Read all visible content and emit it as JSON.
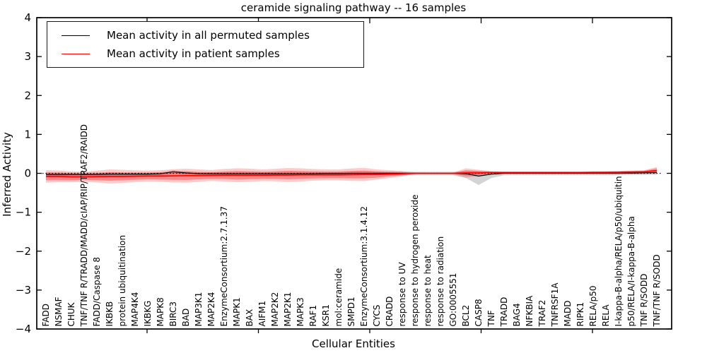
{
  "figure": {
    "title": "ceramide signaling pathway -- 16 samples",
    "xlabel": "Cellular Entities",
    "ylabel": "Inferred Activity"
  },
  "legend": {
    "items": [
      {
        "label": "Mean activity in all permuted samples",
        "color": "#000000"
      },
      {
        "label": "Mean activity in patient samples",
        "color": "#ff0000"
      }
    ]
  },
  "chart_data": {
    "type": "line",
    "title": "ceramide signaling pathway -- 16 samples",
    "xlabel": "Cellular Entities",
    "ylabel": "Inferred Activity",
    "ylim": [
      -4,
      4
    ],
    "yticks": [
      4,
      3,
      2,
      1,
      0,
      -1,
      -2,
      -3,
      -4
    ],
    "grid": false,
    "zero_line": {
      "style": "dotted",
      "color": "#000000",
      "y": 0
    },
    "legend_position": "upper-left",
    "categories": [
      "FADD",
      "NSMAF",
      "CHUK",
      "TNF/TNF R/TRADD/MADD/cIAP/RIP/TRAF2/RAIDD",
      "FADD/Caspase 8",
      "IKBKB",
      "protein ubiquitination",
      "MAP4K4",
      "IKBKG",
      "MAPK8",
      "BIRC3",
      "BAD",
      "MAP3K1",
      "MAP2K4",
      "EnzymeConsortium:2.7.1.37",
      "MAPK1",
      "BAX",
      "AIFM1",
      "MAP2K2",
      "MAP2K1",
      "MAPK3",
      "RAF1",
      "KSR1",
      "mol:ceramide",
      "SMPD1",
      "EnzymeConsortium:3.1.4.12",
      "CYCS",
      "CRADD",
      "response to UV",
      "response to hydrogen peroxide",
      "response to heat",
      "response to radiation",
      "GO:0005551",
      "BCL2",
      "CASP8",
      "TNF",
      "TRADD",
      "BAG4",
      "NFKBIA",
      "TRAF2",
      "TNFRSF1A",
      "MADD",
      "RIPK1",
      "RELA/p50",
      "RELA",
      "I-kappa-B-alpha/RELA/p50/ubiquitin",
      "p50/RELA/I-kappa-B-alpha",
      "TNF R/SODD",
      "TNF/TNF R/SODD"
    ],
    "series": [
      {
        "name": "Mean activity in all permuted samples",
        "color": "#000000",
        "values": [
          -0.03,
          -0.03,
          -0.03,
          -0.03,
          -0.03,
          -0.02,
          -0.02,
          -0.02,
          -0.02,
          -0.01,
          0.04,
          0.01,
          -0.01,
          -0.01,
          -0.01,
          -0.01,
          -0.01,
          -0.01,
          -0.01,
          -0.01,
          -0.01,
          -0.01,
          -0.005,
          -0.005,
          0,
          0,
          0,
          0,
          0,
          0,
          0,
          0,
          0,
          -0.01,
          -0.07,
          -0.02,
          0,
          0,
          0,
          0,
          0,
          0,
          0,
          0,
          0,
          0,
          0.005,
          0.01,
          0.02
        ]
      },
      {
        "name": "Mean activity in patient samples",
        "color": "#ff0000",
        "values": [
          -0.08,
          -0.08,
          -0.09,
          -0.09,
          -0.085,
          -0.08,
          -0.08,
          -0.075,
          -0.07,
          -0.07,
          -0.065,
          -0.06,
          -0.06,
          -0.055,
          -0.05,
          -0.05,
          -0.05,
          -0.05,
          -0.045,
          -0.045,
          -0.04,
          -0.04,
          -0.04,
          -0.04,
          -0.035,
          -0.03,
          -0.03,
          -0.02,
          -0.01,
          0,
          0,
          0,
          0,
          0.01,
          0.01,
          0.02,
          0.02,
          0.02,
          0.02,
          0.02,
          0.02,
          0.02,
          0.02,
          0.025,
          0.025,
          0.03,
          0.035,
          0.04,
          0.07
        ]
      }
    ],
    "bands": [
      {
        "name": "permuted-sample-range",
        "color": "#b0b0b0",
        "opacity": 0.55,
        "upper": [
          0.02,
          0.02,
          0.02,
          0.02,
          0.02,
          0.02,
          0.02,
          0.02,
          0.02,
          0.03,
          0.08,
          0.05,
          0.03,
          0.03,
          0.03,
          0.03,
          0.03,
          0.03,
          0.03,
          0.03,
          0.03,
          0.03,
          0.03,
          0.03,
          0.04,
          0.04,
          0.04,
          0.04,
          0.04,
          0.04,
          0.04,
          0.04,
          0.04,
          0.05,
          0.06,
          0.05,
          0.04,
          0.04,
          0.04,
          0.04,
          0.04,
          0.04,
          0.04,
          0.04,
          0.04,
          0.04,
          0.05,
          0.05,
          0.06
        ],
        "lower": [
          -0.07,
          -0.07,
          -0.07,
          -0.07,
          -0.07,
          -0.07,
          -0.07,
          -0.07,
          -0.07,
          -0.06,
          -0.01,
          -0.04,
          -0.06,
          -0.06,
          -0.06,
          -0.06,
          -0.06,
          -0.06,
          -0.06,
          -0.06,
          -0.06,
          -0.06,
          -0.06,
          -0.06,
          -0.05,
          -0.05,
          -0.05,
          -0.05,
          -0.05,
          -0.05,
          -0.05,
          -0.05,
          -0.05,
          -0.12,
          -0.3,
          -0.12,
          -0.05,
          -0.05,
          -0.05,
          -0.05,
          -0.05,
          -0.05,
          -0.05,
          -0.05,
          -0.05,
          -0.05,
          -0.04,
          -0.04,
          -0.03
        ]
      },
      {
        "name": "patient-range-outer",
        "color": "#ff3b3b",
        "opacity": 0.27,
        "center_series": 1,
        "width": [
          0.16,
          0.15,
          0.14,
          0.13,
          0.15,
          0.18,
          0.17,
          0.15,
          0.14,
          0.15,
          0.17,
          0.18,
          0.16,
          0.14,
          0.16,
          0.18,
          0.17,
          0.15,
          0.16,
          0.18,
          0.17,
          0.15,
          0.14,
          0.14,
          0.16,
          0.17,
          0.13,
          0.1,
          0.07,
          0.02,
          0.01,
          0.01,
          0.02,
          0.12,
          0.08,
          0.03,
          0.025,
          0.025,
          0.025,
          0.025,
          0.025,
          0.025,
          0.025,
          0.025,
          0.03,
          0.03,
          0.035,
          0.04,
          0.09
        ]
      },
      {
        "name": "patient-range-inner",
        "color": "#f02020",
        "opacity": 0.38,
        "center_series": 1,
        "width": [
          0.1,
          0.095,
          0.09,
          0.08,
          0.09,
          0.11,
          0.1,
          0.09,
          0.085,
          0.09,
          0.1,
          0.11,
          0.095,
          0.085,
          0.095,
          0.11,
          0.1,
          0.09,
          0.095,
          0.11,
          0.1,
          0.09,
          0.085,
          0.085,
          0.095,
          0.1,
          0.08,
          0.06,
          0.04,
          0.01,
          0.005,
          0.005,
          0.01,
          0.07,
          0.05,
          0.02,
          0.015,
          0.015,
          0.015,
          0.015,
          0.015,
          0.015,
          0.015,
          0.015,
          0.018,
          0.018,
          0.02,
          0.025,
          0.055
        ]
      }
    ]
  }
}
